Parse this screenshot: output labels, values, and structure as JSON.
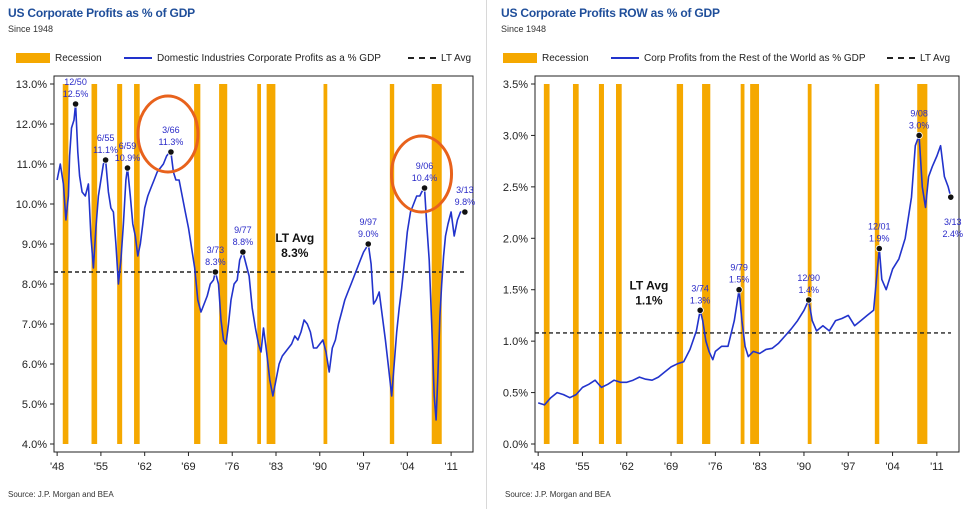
{
  "chart_data": [
    {
      "type": "line",
      "title": "US Corporate Profits as % of GDP",
      "subtitle": "Since 1948",
      "legend": {
        "recession": "Recession",
        "series": "Domestic Industries Corporate Profits as a % GDP",
        "avg": "LT Avg"
      },
      "ylim": [
        4.0,
        13.0
      ],
      "yticks": [
        "4.0%",
        "5.0%",
        "6.0%",
        "7.0%",
        "8.0%",
        "9.0%",
        "10.0%",
        "11.0%",
        "12.0%",
        "13.0%"
      ],
      "ytick_values": [
        4,
        5,
        6,
        7,
        8,
        9,
        10,
        11,
        12,
        13
      ],
      "xlim": [
        1947.5,
        2014.5
      ],
      "xticks": [
        "'48",
        "'55",
        "'62",
        "'69",
        "'76",
        "'83",
        "'90",
        "'97",
        "'04",
        "'11"
      ],
      "xtick_values": [
        1948,
        1955,
        1962,
        1969,
        1976,
        1983,
        1990,
        1997,
        2004,
        2011
      ],
      "recessions": [
        [
          1948.9,
          1949.8
        ],
        [
          1953.5,
          1954.4
        ],
        [
          1957.6,
          1958.4
        ],
        [
          1960.3,
          1961.2
        ],
        [
          1969.9,
          1970.9
        ],
        [
          1973.9,
          1975.2
        ],
        [
          1980.0,
          1980.6
        ],
        [
          1981.5,
          1982.9
        ],
        [
          1990.6,
          1991.2
        ],
        [
          2001.2,
          2001.9
        ],
        [
          2007.9,
          2009.5
        ]
      ],
      "lt_avg": 8.3,
      "avg_label": [
        "LT Avg",
        "8.3%"
      ],
      "avg_label_pos": [
        1986.0,
        9.05
      ],
      "series": [
        {
          "x": [
            1948.0,
            1948.5,
            1949.0,
            1949.4,
            1949.8,
            1950.0,
            1950.3,
            1950.7,
            1950.95,
            1951.3,
            1951.6,
            1952.0,
            1952.5,
            1953.0,
            1953.4,
            1953.8,
            1954.2,
            1954.6,
            1955.0,
            1955.4,
            1955.75,
            1956.2,
            1956.6,
            1957.0,
            1957.4,
            1957.8,
            1958.2,
            1958.6,
            1959.0,
            1959.25,
            1959.7,
            1960.1,
            1960.5,
            1960.9,
            1961.3,
            1961.7,
            1962.0,
            1962.5,
            1963.0,
            1963.5,
            1964.0,
            1964.5,
            1965.0,
            1965.5,
            1966.0,
            1966.2,
            1966.6,
            1967.0,
            1967.5,
            1968.0,
            1968.5,
            1969.0,
            1969.5,
            1970.0,
            1970.5,
            1971.0,
            1971.5,
            1972.0,
            1972.5,
            1973.0,
            1973.3,
            1973.8,
            1974.2,
            1974.6,
            1975.0,
            1975.4,
            1975.8,
            1976.3,
            1976.8,
            1977.2,
            1977.7,
            1978.2,
            1978.7,
            1979.2,
            1979.7,
            1980.2,
            1980.6,
            1981.0,
            1981.5,
            1982.0,
            1982.5,
            1983.0,
            1983.5,
            1984.0,
            1984.5,
            1985.0,
            1985.5,
            1986.0,
            1986.5,
            1987.0,
            1987.5,
            1988.0,
            1988.5,
            1989.0,
            1989.5,
            1990.0,
            1990.5,
            1991.0,
            1991.5,
            1992.0,
            1992.5,
            1993.0,
            1993.5,
            1994.0,
            1994.5,
            1995.0,
            1995.5,
            1996.0,
            1996.5,
            1997.0,
            1997.4,
            1997.75,
            1998.2,
            1998.6,
            1999.0,
            1999.5,
            2000.0,
            2000.5,
            2001.0,
            2001.5,
            2001.9,
            2002.3,
            2002.7,
            2003.1,
            2003.5,
            2004.0,
            2004.5,
            2005.0,
            2005.5,
            2006.0,
            2006.3,
            2006.75,
            2007.1,
            2007.5,
            2007.9,
            2008.3,
            2008.6,
            2008.9,
            2009.2,
            2009.5,
            2009.8,
            2010.1,
            2010.5,
            2011.0,
            2011.5,
            2012.0,
            2012.5,
            2013.0,
            2013.2
          ],
          "values": [
            10.6,
            11.0,
            10.5,
            9.6,
            10.2,
            11.2,
            11.9,
            12.1,
            12.5,
            11.3,
            10.7,
            10.3,
            10.2,
            10.5,
            9.2,
            8.4,
            9.4,
            10.2,
            10.6,
            11.0,
            11.1,
            10.3,
            9.9,
            9.8,
            9.0,
            8.0,
            8.6,
            9.5,
            10.6,
            10.9,
            10.2,
            9.5,
            9.2,
            8.7,
            9.0,
            9.5,
            9.9,
            10.2,
            10.4,
            10.6,
            10.8,
            10.9,
            11.0,
            11.2,
            11.3,
            11.3,
            10.8,
            10.6,
            10.6,
            10.2,
            9.8,
            9.4,
            8.9,
            8.4,
            7.6,
            7.3,
            7.5,
            7.7,
            8.0,
            8.1,
            8.3,
            8.0,
            7.1,
            6.6,
            6.5,
            7.0,
            7.6,
            8.0,
            8.1,
            8.6,
            8.8,
            8.5,
            8.2,
            7.4,
            6.9,
            6.5,
            6.3,
            6.9,
            6.3,
            5.6,
            5.2,
            5.6,
            6.0,
            6.2,
            6.3,
            6.4,
            6.5,
            6.7,
            6.6,
            6.8,
            7.1,
            7.0,
            6.8,
            6.4,
            6.4,
            6.5,
            6.6,
            6.3,
            5.8,
            6.4,
            6.6,
            7.0,
            7.3,
            7.6,
            7.8,
            8.0,
            8.2,
            8.4,
            8.6,
            8.8,
            8.9,
            9.0,
            8.5,
            7.5,
            7.6,
            7.8,
            7.2,
            6.6,
            5.9,
            5.2,
            6.0,
            6.8,
            7.4,
            7.9,
            8.5,
            9.3,
            9.8,
            10.0,
            10.2,
            10.2,
            10.3,
            10.4,
            9.5,
            8.6,
            7.0,
            5.2,
            4.6,
            5.8,
            7.2,
            8.0,
            8.7,
            9.2,
            9.5,
            9.8,
            9.2,
            9.6,
            9.8,
            9.8,
            9.8
          ]
        }
      ],
      "annotations": [
        {
          "date": "12/50",
          "value": "12.5%",
          "x": 1950.95,
          "y": 12.5
        },
        {
          "date": "6/55",
          "value": "11.1%",
          "x": 1955.75,
          "y": 11.1
        },
        {
          "date": "6/59",
          "value": "10.9%",
          "x": 1959.25,
          "y": 10.9
        },
        {
          "date": "3/66",
          "value": "11.3%",
          "x": 1966.2,
          "y": 11.3
        },
        {
          "date": "3/73",
          "value": "8.3%",
          "x": 1973.3,
          "y": 8.3
        },
        {
          "date": "9/77",
          "value": "8.8%",
          "x": 1977.7,
          "y": 8.8
        },
        {
          "date": "9/97",
          "value": "9.0%",
          "x": 1997.75,
          "y": 9.0
        },
        {
          "date": "9/06",
          "value": "10.4%",
          "x": 2006.75,
          "y": 10.4
        },
        {
          "date": "3/13",
          "value": "9.8%",
          "x": 2013.2,
          "y": 9.8
        }
      ],
      "highlight_circles": [
        [
          1966.2,
          11.6
        ],
        [
          2006.75,
          10.6
        ]
      ],
      "source": "Source: J.P. Morgan and BEA",
      "colors": {
        "recession": "#f5a800",
        "series": "#2233cc",
        "annotation": "#2a2ac8",
        "circle": "#e8621c",
        "avg": "#222222"
      },
      "grid": false
    },
    {
      "type": "line",
      "title": "US Corporate Profits ROW as % of GDP",
      "subtitle": "Since 1948",
      "legend": {
        "recession": "Recession",
        "series": "Corp Profits from the Rest of the World as % GDP",
        "avg": "LT Avg"
      },
      "ylim": [
        0.0,
        3.5
      ],
      "yticks": [
        "0.0%",
        "0.5%",
        "1.0%",
        "1.5%",
        "2.0%",
        "2.5%",
        "3.0%",
        "3.5%"
      ],
      "ytick_values": [
        0.0,
        0.5,
        1.0,
        1.5,
        2.0,
        2.5,
        3.0,
        3.5
      ],
      "xlim": [
        1947.5,
        2014.5
      ],
      "xticks": [
        "'48",
        "'55",
        "'62",
        "'69",
        "'76",
        "'83",
        "'90",
        "'97",
        "'04",
        "'11"
      ],
      "xtick_values": [
        1948,
        1955,
        1962,
        1969,
        1976,
        1983,
        1990,
        1997,
        2004,
        2011
      ],
      "recessions": [
        [
          1948.9,
          1949.8
        ],
        [
          1953.5,
          1954.4
        ],
        [
          1957.6,
          1958.4
        ],
        [
          1960.3,
          1961.2
        ],
        [
          1969.9,
          1970.9
        ],
        [
          1973.9,
          1975.2
        ],
        [
          1980.0,
          1980.6
        ],
        [
          1981.5,
          1982.9
        ],
        [
          1990.6,
          1991.2
        ],
        [
          2001.2,
          2001.9
        ],
        [
          2007.9,
          2009.5
        ]
      ],
      "lt_avg": 1.08,
      "avg_label": [
        "LT Avg",
        "1.1%"
      ],
      "avg_label_pos": [
        1965.5,
        1.5
      ],
      "series": [
        {
          "x": [
            1948.0,
            1949.0,
            1950.0,
            1951.0,
            1952.0,
            1953.0,
            1954.0,
            1955.0,
            1956.0,
            1957.0,
            1958.0,
            1959.0,
            1960.0,
            1961.0,
            1962.0,
            1963.0,
            1964.0,
            1965.0,
            1966.0,
            1967.0,
            1968.0,
            1969.0,
            1970.0,
            1971.0,
            1972.0,
            1973.0,
            1973.6,
            1974.0,
            1974.5,
            1975.0,
            1975.6,
            1976.0,
            1977.0,
            1978.0,
            1979.0,
            1979.75,
            1980.2,
            1980.7,
            1981.2,
            1982.0,
            1983.0,
            1984.0,
            1985.0,
            1986.0,
            1987.0,
            1988.0,
            1989.0,
            1990.0,
            1990.75,
            1991.3,
            1992.0,
            1993.0,
            1994.0,
            1995.0,
            1996.0,
            1997.0,
            1998.0,
            1999.0,
            2000.0,
            2001.0,
            2001.9,
            2002.3,
            2003.0,
            2004.0,
            2005.0,
            2006.0,
            2007.0,
            2007.6,
            2008.2,
            2008.7,
            2009.2,
            2009.7,
            2010.3,
            2011.0,
            2011.6,
            2012.2,
            2012.8,
            2013.2
          ],
          "values": [
            0.4,
            0.38,
            0.45,
            0.5,
            0.48,
            0.45,
            0.48,
            0.55,
            0.58,
            0.62,
            0.55,
            0.58,
            0.62,
            0.6,
            0.6,
            0.62,
            0.65,
            0.63,
            0.62,
            0.65,
            0.7,
            0.75,
            0.78,
            0.8,
            0.92,
            1.1,
            1.3,
            1.2,
            1.0,
            0.9,
            0.82,
            0.9,
            0.95,
            0.95,
            1.2,
            1.5,
            1.2,
            0.95,
            0.85,
            0.9,
            0.88,
            0.92,
            0.93,
            0.98,
            1.05,
            1.12,
            1.2,
            1.3,
            1.4,
            1.2,
            1.1,
            1.15,
            1.1,
            1.2,
            1.22,
            1.25,
            1.15,
            1.2,
            1.25,
            1.3,
            1.9,
            1.6,
            1.5,
            1.7,
            1.8,
            2.0,
            2.4,
            2.9,
            3.0,
            2.5,
            2.3,
            2.6,
            2.7,
            2.8,
            2.9,
            2.6,
            2.5,
            2.4
          ]
        }
      ],
      "annotations": [
        {
          "date": "3/74",
          "value": "1.3%",
          "x": 1973.6,
          "y": 1.3
        },
        {
          "date": "9/79",
          "value": "1.5%",
          "x": 1979.75,
          "y": 1.5
        },
        {
          "date": "12/90",
          "value": "1.4%",
          "x": 1990.75,
          "y": 1.4
        },
        {
          "date": "12/01",
          "value": "1.9%",
          "x": 2001.9,
          "y": 1.9
        },
        {
          "date": "9/08",
          "value": "3.0%",
          "x": 2008.2,
          "y": 3.0
        },
        {
          "date": "3/13",
          "value": "2.4%",
          "x": 2013.2,
          "y": 2.4,
          "below": true
        }
      ],
      "highlight_circles": [],
      "source": "Source: J.P. Morgan and BEA",
      "colors": {
        "recession": "#f5a800",
        "series": "#2233cc",
        "annotation": "#2a2ac8",
        "circle": "#e8621c",
        "avg": "#222222"
      },
      "grid": false
    }
  ]
}
